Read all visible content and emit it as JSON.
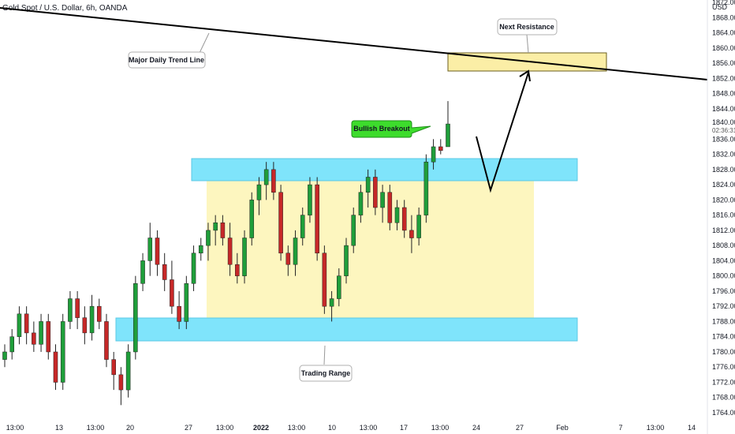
{
  "header": {
    "symbol_line": "Gold Spot / U.S. Dollar, 6h, OANDA"
  },
  "price_axis": {
    "currency": "USD",
    "ticks": [
      "1872.000",
      "1868.000",
      "1864.000",
      "1860.000",
      "1856.000",
      "1852.000",
      "1848.000",
      "1844.000",
      "1836.000",
      "1832.000",
      "1828.000",
      "1824.000",
      "1820.000",
      "1816.000",
      "1812.000",
      "1808.000",
      "1804.000",
      "1800.000",
      "1796.000",
      "1792.000",
      "1788.000",
      "1784.000",
      "1780.000",
      "1776.000",
      "1772.000",
      "1768.000",
      "1764.000"
    ],
    "last_price": "1840.005",
    "countdown": "02:36:31"
  },
  "time_axis": {
    "ticks": [
      "13:00",
      "13",
      "13:00",
      "20",
      "27",
      "13:00",
      "2022",
      "13:00",
      "10",
      "13:00",
      "17",
      "13:00",
      "24",
      "27",
      "Feb",
      "7",
      "13:00",
      "14"
    ]
  },
  "annotations": {
    "trend_line_label": "Major Daily Trend Line",
    "resistance_label": "Next Resistance",
    "breakout_label": "Bullish Breakout",
    "range_label": "Trading Range"
  },
  "colors": {
    "bull": "#1f9e3a",
    "bear": "#c62828",
    "support_zone": "#7fe4fb",
    "range_zone": "#fdf6bf",
    "resistance_zone": "#fbeea6",
    "breakout_bubble": "#3ddc2c",
    "line": "#000000"
  },
  "chart_data": {
    "type": "candlestick",
    "title": "Gold Spot / U.S. Dollar, 6h, OANDA",
    "ylabel": "USD",
    "ylim": [
      1762,
      1874
    ],
    "last_price": 1840.005,
    "ohlc": [
      [
        1778,
        1782,
        1776,
        1780
      ],
      [
        1780,
        1786,
        1778,
        1784
      ],
      [
        1784,
        1792,
        1782,
        1790
      ],
      [
        1790,
        1792,
        1782,
        1785
      ],
      [
        1785,
        1788,
        1780,
        1782
      ],
      [
        1782,
        1790,
        1780,
        1788
      ],
      [
        1788,
        1790,
        1778,
        1780
      ],
      [
        1780,
        1782,
        1770,
        1772
      ],
      [
        1772,
        1790,
        1770,
        1788
      ],
      [
        1788,
        1796,
        1786,
        1794
      ],
      [
        1794,
        1796,
        1786,
        1789
      ],
      [
        1789,
        1792,
        1782,
        1785
      ],
      [
        1785,
        1795,
        1783,
        1792
      ],
      [
        1792,
        1794,
        1786,
        1788
      ],
      [
        1788,
        1790,
        1776,
        1778
      ],
      [
        1778,
        1780,
        1770,
        1774
      ],
      [
        1774,
        1776,
        1766,
        1770
      ],
      [
        1770,
        1782,
        1768,
        1780
      ],
      [
        1780,
        1800,
        1778,
        1798
      ],
      [
        1798,
        1806,
        1796,
        1804
      ],
      [
        1804,
        1814,
        1800,
        1810
      ],
      [
        1810,
        1812,
        1800,
        1803
      ],
      [
        1803,
        1806,
        1796,
        1799
      ],
      [
        1799,
        1804,
        1790,
        1792
      ],
      [
        1792,
        1796,
        1786,
        1788
      ],
      [
        1788,
        1800,
        1786,
        1798
      ],
      [
        1798,
        1808,
        1796,
        1806
      ],
      [
        1806,
        1810,
        1804,
        1808
      ],
      [
        1808,
        1814,
        1804,
        1812
      ],
      [
        1812,
        1816,
        1808,
        1814
      ],
      [
        1814,
        1816,
        1808,
        1810
      ],
      [
        1810,
        1814,
        1800,
        1803
      ],
      [
        1803,
        1806,
        1798,
        1800
      ],
      [
        1800,
        1812,
        1798,
        1810
      ],
      [
        1810,
        1822,
        1808,
        1820
      ],
      [
        1820,
        1826,
        1816,
        1824
      ],
      [
        1824,
        1830,
        1820,
        1828
      ],
      [
        1828,
        1830,
        1820,
        1822
      ],
      [
        1822,
        1824,
        1804,
        1806
      ],
      [
        1806,
        1808,
        1800,
        1803
      ],
      [
        1803,
        1812,
        1800,
        1810
      ],
      [
        1810,
        1818,
        1808,
        1816
      ],
      [
        1816,
        1826,
        1814,
        1824
      ],
      [
        1824,
        1826,
        1804,
        1806
      ],
      [
        1806,
        1808,
        1790,
        1792
      ],
      [
        1792,
        1796,
        1788,
        1794
      ],
      [
        1794,
        1802,
        1792,
        1800
      ],
      [
        1800,
        1810,
        1798,
        1808
      ],
      [
        1808,
        1818,
        1806,
        1816
      ],
      [
        1816,
        1824,
        1814,
        1822
      ],
      [
        1822,
        1828,
        1818,
        1826
      ],
      [
        1826,
        1828,
        1816,
        1818
      ],
      [
        1818,
        1824,
        1814,
        1822
      ],
      [
        1822,
        1824,
        1812,
        1814
      ],
      [
        1814,
        1820,
        1812,
        1818
      ],
      [
        1818,
        1820,
        1810,
        1812
      ],
      [
        1812,
        1816,
        1806,
        1810
      ],
      [
        1810,
        1818,
        1808,
        1816
      ],
      [
        1816,
        1832,
        1814,
        1830
      ],
      [
        1830,
        1836,
        1828,
        1834
      ],
      [
        1834,
        1836,
        1832,
        1833
      ],
      [
        1834,
        1846,
        1834,
        1840
      ]
    ]
  }
}
